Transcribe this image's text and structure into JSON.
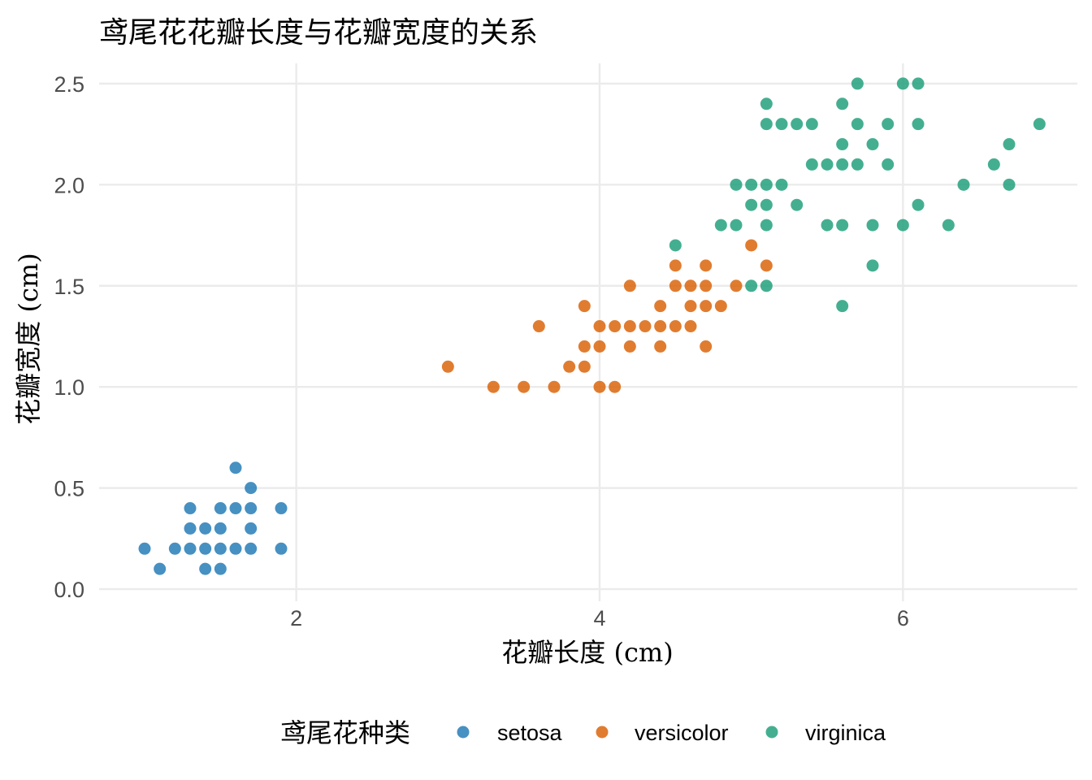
{
  "chart_data": {
    "type": "scatter",
    "title": "鸢尾花花瓣长度与花瓣宽度的关系",
    "xlabel": "花瓣长度 (cm)",
    "ylabel": "花瓣宽度 (cm)",
    "xlim": [
      0.7,
      7.15
    ],
    "ylim": [
      -0.06,
      2.6
    ],
    "x_ticks": [
      2,
      4,
      6
    ],
    "x_tick_labels": [
      "2",
      "4",
      "6"
    ],
    "y_ticks": [
      0,
      0.5,
      1,
      1.5,
      2,
      2.5
    ],
    "y_tick_labels": [
      "0.0",
      "0.5",
      "1.0",
      "1.5",
      "2.0",
      "2.5"
    ],
    "grid": true,
    "legend": {
      "title": "鸢尾花种类",
      "position": "bottom"
    },
    "series": [
      {
        "name": "setosa",
        "color": "#1f78b4",
        "points": [
          [
            1.0,
            0.2
          ],
          [
            1.1,
            0.1
          ],
          [
            1.2,
            0.2
          ],
          [
            1.3,
            0.2
          ],
          [
            1.3,
            0.3
          ],
          [
            1.3,
            0.4
          ],
          [
            1.4,
            0.1
          ],
          [
            1.4,
            0.2
          ],
          [
            1.4,
            0.3
          ],
          [
            1.5,
            0.1
          ],
          [
            1.5,
            0.2
          ],
          [
            1.5,
            0.3
          ],
          [
            1.5,
            0.4
          ],
          [
            1.6,
            0.2
          ],
          [
            1.6,
            0.4
          ],
          [
            1.6,
            0.6
          ],
          [
            1.7,
            0.2
          ],
          [
            1.7,
            0.3
          ],
          [
            1.7,
            0.4
          ],
          [
            1.7,
            0.5
          ],
          [
            1.9,
            0.2
          ],
          [
            1.9,
            0.4
          ]
        ]
      },
      {
        "name": "versicolor",
        "color": "#d95f02",
        "points": [
          [
            3.0,
            1.1
          ],
          [
            3.3,
            1.0
          ],
          [
            3.5,
            1.0
          ],
          [
            3.6,
            1.3
          ],
          [
            3.7,
            1.0
          ],
          [
            3.8,
            1.1
          ],
          [
            3.9,
            1.1
          ],
          [
            3.9,
            1.2
          ],
          [
            3.9,
            1.4
          ],
          [
            4.0,
            1.0
          ],
          [
            4.0,
            1.2
          ],
          [
            4.0,
            1.3
          ],
          [
            4.1,
            1.0
          ],
          [
            4.1,
            1.3
          ],
          [
            4.2,
            1.2
          ],
          [
            4.2,
            1.3
          ],
          [
            4.2,
            1.5
          ],
          [
            4.3,
            1.3
          ],
          [
            4.4,
            1.2
          ],
          [
            4.4,
            1.3
          ],
          [
            4.4,
            1.4
          ],
          [
            4.5,
            1.3
          ],
          [
            4.5,
            1.5
          ],
          [
            4.5,
            1.6
          ],
          [
            4.6,
            1.3
          ],
          [
            4.6,
            1.4
          ],
          [
            4.6,
            1.5
          ],
          [
            4.7,
            1.2
          ],
          [
            4.7,
            1.4
          ],
          [
            4.7,
            1.5
          ],
          [
            4.7,
            1.6
          ],
          [
            4.8,
            1.4
          ],
          [
            4.9,
            1.5
          ],
          [
            5.0,
            1.7
          ],
          [
            5.1,
            1.6
          ]
        ]
      },
      {
        "name": "virginica",
        "color": "#1b9e77",
        "points": [
          [
            4.5,
            1.7
          ],
          [
            4.8,
            1.8
          ],
          [
            4.9,
            1.8
          ],
          [
            4.9,
            2.0
          ],
          [
            5.0,
            1.5
          ],
          [
            5.0,
            1.9
          ],
          [
            5.0,
            2.0
          ],
          [
            5.1,
            1.5
          ],
          [
            5.1,
            1.8
          ],
          [
            5.1,
            1.9
          ],
          [
            5.1,
            2.0
          ],
          [
            5.1,
            2.3
          ],
          [
            5.1,
            2.4
          ],
          [
            5.2,
            2.0
          ],
          [
            5.2,
            2.3
          ],
          [
            5.3,
            1.9
          ],
          [
            5.3,
            2.3
          ],
          [
            5.4,
            2.1
          ],
          [
            5.4,
            2.3
          ],
          [
            5.5,
            1.8
          ],
          [
            5.5,
            2.1
          ],
          [
            5.6,
            1.4
          ],
          [
            5.6,
            1.8
          ],
          [
            5.6,
            2.1
          ],
          [
            5.6,
            2.2
          ],
          [
            5.6,
            2.4
          ],
          [
            5.7,
            2.1
          ],
          [
            5.7,
            2.3
          ],
          [
            5.7,
            2.5
          ],
          [
            5.8,
            1.6
          ],
          [
            5.8,
            1.8
          ],
          [
            5.8,
            2.2
          ],
          [
            5.9,
            2.1
          ],
          [
            5.9,
            2.3
          ],
          [
            6.0,
            1.8
          ],
          [
            6.0,
            2.5
          ],
          [
            6.1,
            1.9
          ],
          [
            6.1,
            2.3
          ],
          [
            6.1,
            2.5
          ],
          [
            6.3,
            1.8
          ],
          [
            6.4,
            2.0
          ],
          [
            6.6,
            2.1
          ],
          [
            6.7,
            2.0
          ],
          [
            6.7,
            2.2
          ],
          [
            6.9,
            2.3
          ]
        ]
      }
    ]
  }
}
